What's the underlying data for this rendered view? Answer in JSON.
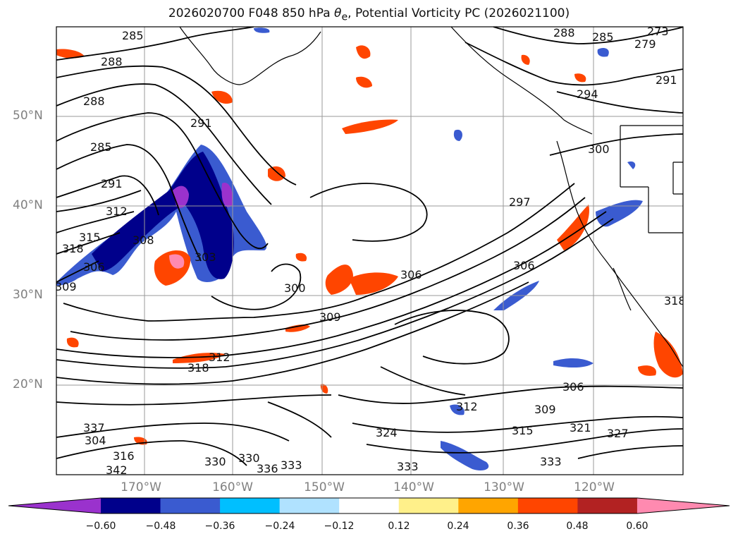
{
  "title_prefix": "2026020700 F048 850 hPa ",
  "title_theta": "θ",
  "title_sub": "e",
  "title_suffix": ", Potential Vorticity PC (2026021100)",
  "lat_labels": [
    "50°N",
    "40°N",
    "30°N",
    "20°N"
  ],
  "lon_labels": [
    "170°W",
    "160°W",
    "150°W",
    "140°W",
    "130°W",
    "120°W"
  ],
  "contour_labels": [
    "285",
    "288",
    "288",
    "285",
    "291",
    "312",
    "315",
    "318",
    "306",
    "309",
    "303",
    "308",
    "291",
    "300",
    "306",
    "309",
    "312",
    "318",
    "297",
    "300",
    "306",
    "294",
    "291",
    "288",
    "285",
    "279",
    "273",
    "318",
    "306",
    "309",
    "312",
    "315",
    "321",
    "324",
    "327",
    "330",
    "330",
    "336",
    "333",
    "333",
    "333",
    "342",
    "337",
    "304",
    "316"
  ],
  "colorbar": {
    "ticks": [
      "−0.60",
      "−0.48",
      "−0.36",
      "−0.24",
      "−0.12",
      "0.12",
      "0.24",
      "0.36",
      "0.48",
      "0.60"
    ],
    "colors": [
      "#9a32cd",
      "#00008b",
      "#3a5bd0",
      "#00bfff",
      "#b0e2ff",
      "#ffffff",
      "#fff08a",
      "#ffa500",
      "#ff4500",
      "#b22222",
      "#ff8ab0"
    ]
  }
}
